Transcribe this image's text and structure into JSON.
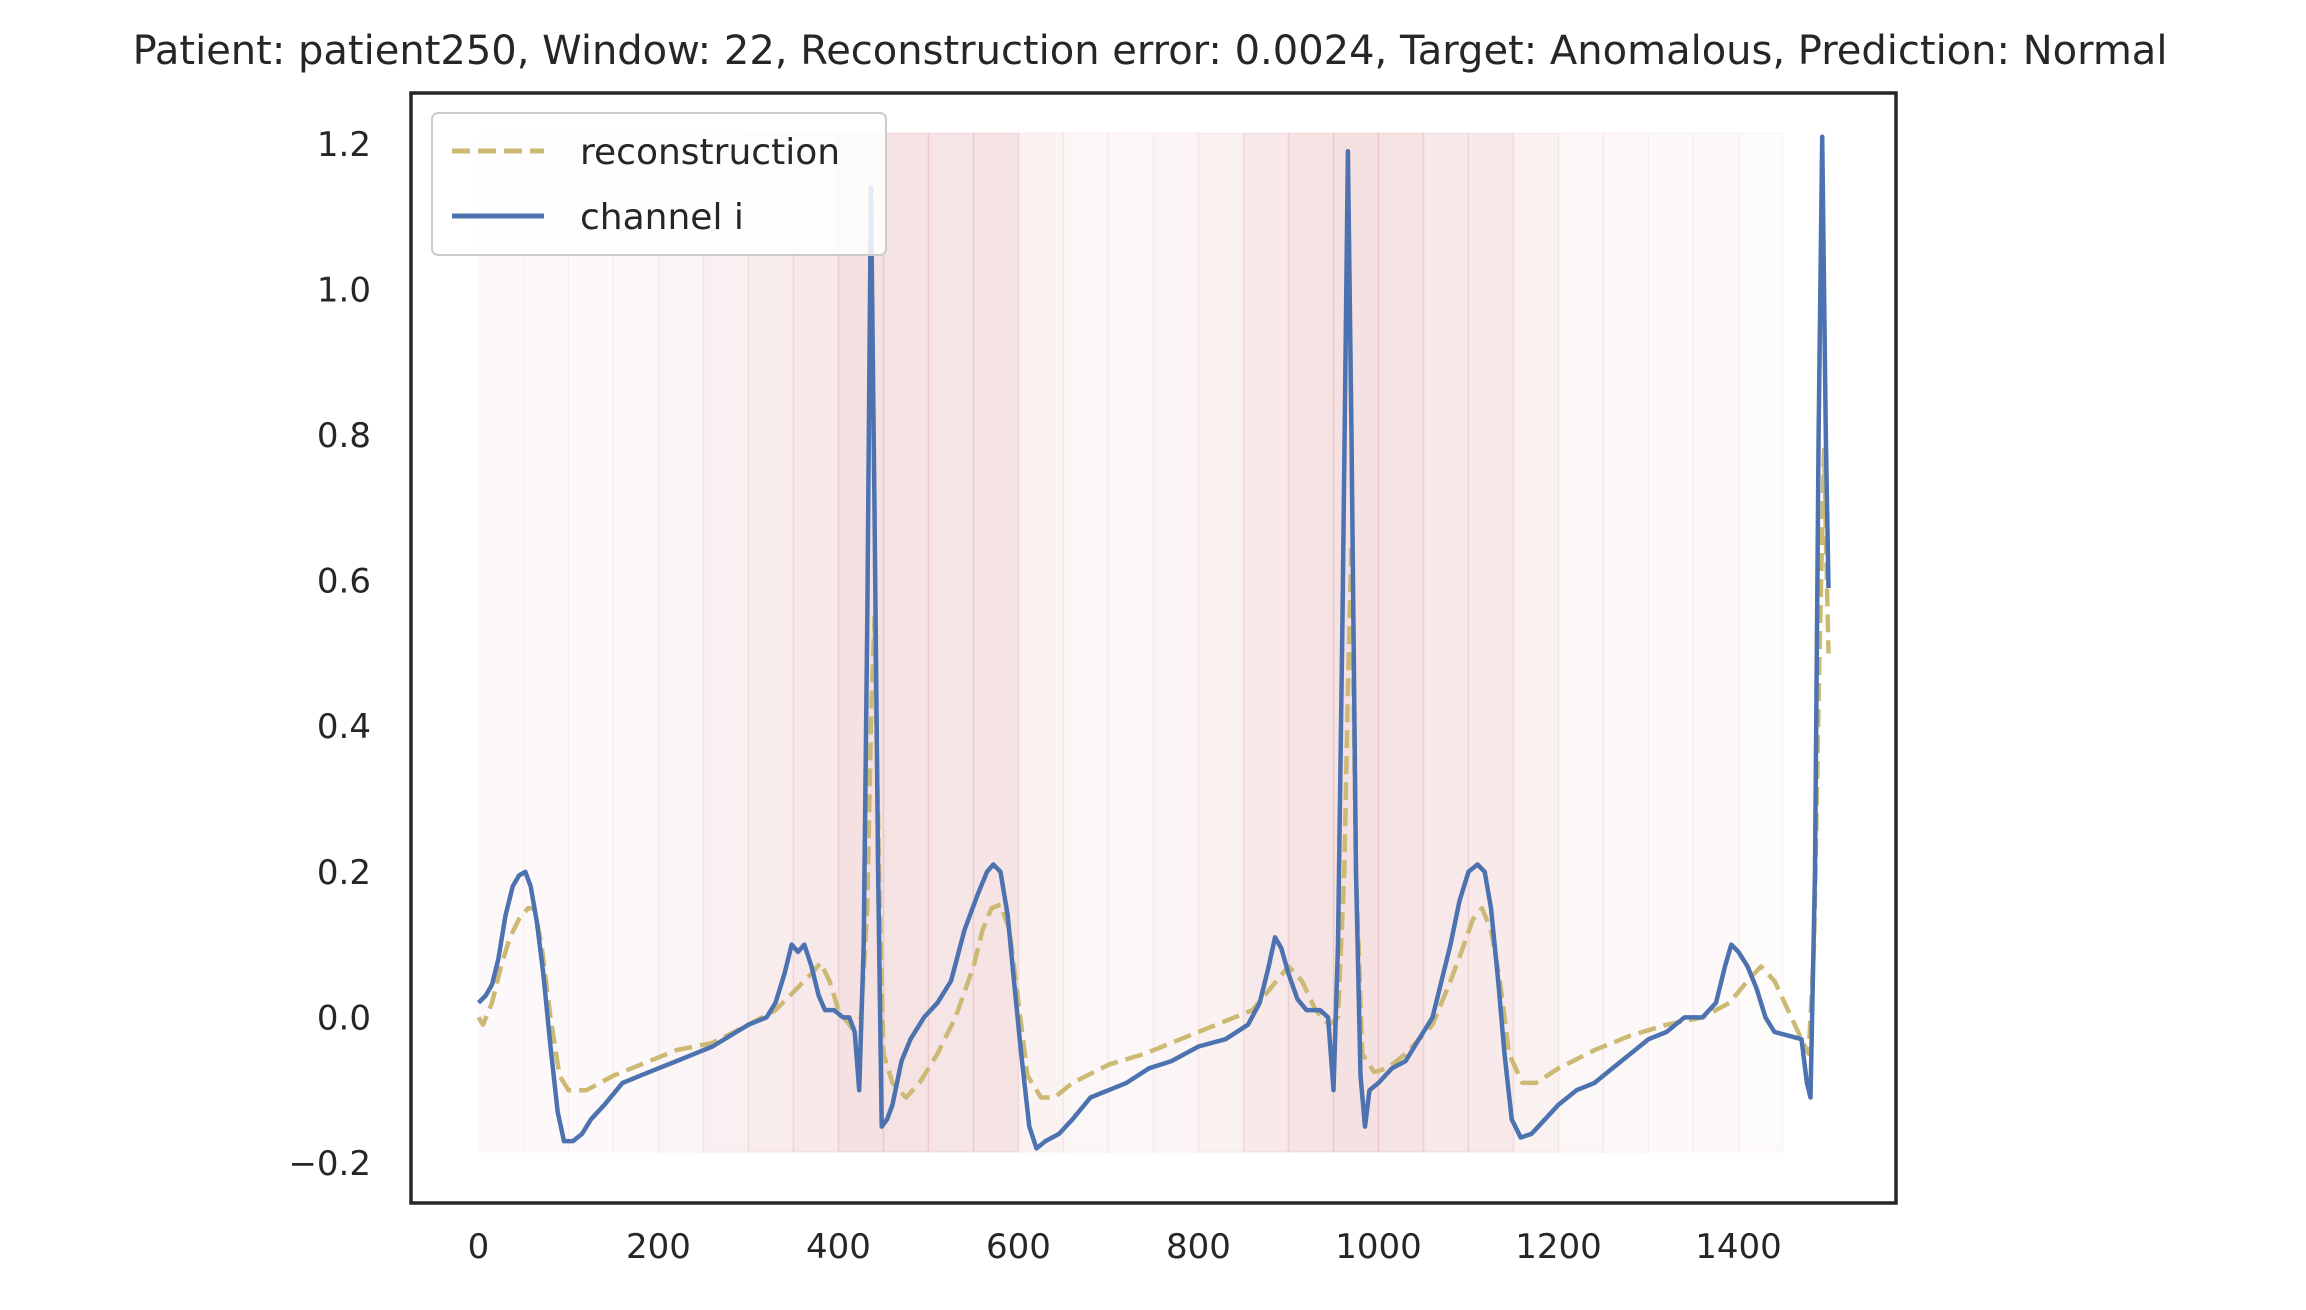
{
  "chart_data": {
    "type": "line",
    "title": "Patient: patient250, Window: 22, Reconstruction error: 0.0024, Target: Anomalous, Prediction: Normal",
    "xlabel": "",
    "ylabel": "",
    "xlim": [
      -75,
      1575
    ],
    "ylim": [
      -0.255,
      1.27
    ],
    "x_ticks": [
      0,
      200,
      400,
      600,
      800,
      1000,
      1200,
      1400
    ],
    "x_tick_labels": [
      "0",
      "200",
      "400",
      "600",
      "800",
      "1000",
      "1200",
      "1400"
    ],
    "y_ticks": [
      -0.2,
      0.0,
      0.2,
      0.4,
      0.6,
      0.8,
      1.0,
      1.2
    ],
    "y_tick_labels": [
      "−0.2",
      "0.0",
      "0.2",
      "0.4",
      "0.6",
      "0.8",
      "1.0",
      "1.2"
    ],
    "grid": false,
    "legend_position": "top-left",
    "error_bands": {
      "color": "#c44e52",
      "y_range": [
        -0.185,
        1.215
      ],
      "segments": [
        {
          "x0": 0,
          "x1": 50,
          "intensity": 0.06
        },
        {
          "x0": 50,
          "x1": 100,
          "intensity": 0.06
        },
        {
          "x0": 100,
          "x1": 150,
          "intensity": 0.06
        },
        {
          "x0": 150,
          "x1": 200,
          "intensity": 0.06
        },
        {
          "x0": 200,
          "x1": 250,
          "intensity": 0.22
        },
        {
          "x0": 250,
          "x1": 300,
          "intensity": 0.32
        },
        {
          "x0": 300,
          "x1": 350,
          "intensity": 0.42
        },
        {
          "x0": 350,
          "x1": 400,
          "intensity": 0.55
        },
        {
          "x0": 400,
          "x1": 450,
          "intensity": 0.75
        },
        {
          "x0": 450,
          "x1": 500,
          "intensity": 0.72
        },
        {
          "x0": 500,
          "x1": 550,
          "intensity": 0.62
        },
        {
          "x0": 550,
          "x1": 600,
          "intensity": 0.68
        },
        {
          "x0": 600,
          "x1": 650,
          "intensity": 0.28
        },
        {
          "x0": 650,
          "x1": 700,
          "intensity": 0.14
        },
        {
          "x0": 700,
          "x1": 750,
          "intensity": 0.1
        },
        {
          "x0": 750,
          "x1": 800,
          "intensity": 0.18
        },
        {
          "x0": 800,
          "x1": 850,
          "intensity": 0.3
        },
        {
          "x0": 850,
          "x1": 900,
          "intensity": 0.55
        },
        {
          "x0": 900,
          "x1": 950,
          "intensity": 0.66
        },
        {
          "x0": 950,
          "x1": 1000,
          "intensity": 0.75
        },
        {
          "x0": 1000,
          "x1": 1050,
          "intensity": 0.7
        },
        {
          "x0": 1050,
          "x1": 1100,
          "intensity": 0.55
        },
        {
          "x0": 1100,
          "x1": 1150,
          "intensity": 0.48
        },
        {
          "x0": 1150,
          "x1": 1200,
          "intensity": 0.3
        },
        {
          "x0": 1200,
          "x1": 1250,
          "intensity": 0.14
        },
        {
          "x0": 1250,
          "x1": 1300,
          "intensity": 0.1
        },
        {
          "x0": 1300,
          "x1": 1350,
          "intensity": 0.08
        },
        {
          "x0": 1350,
          "x1": 1400,
          "intensity": 0.06
        },
        {
          "x0": 1400,
          "x1": 1450,
          "intensity": 0.04
        }
      ]
    },
    "series": [
      {
        "name": "reconstruction",
        "color": "#ccb974",
        "style": "dashed",
        "points": [
          [
            0,
            0.0
          ],
          [
            5,
            -0.01
          ],
          [
            15,
            0.02
          ],
          [
            25,
            0.07
          ],
          [
            35,
            0.11
          ],
          [
            45,
            0.135
          ],
          [
            55,
            0.15
          ],
          [
            62,
            0.15
          ],
          [
            70,
            0.1
          ],
          [
            80,
            0.0
          ],
          [
            90,
            -0.08
          ],
          [
            100,
            -0.1
          ],
          [
            120,
            -0.1
          ],
          [
            150,
            -0.08
          ],
          [
            180,
            -0.065
          ],
          [
            220,
            -0.045
          ],
          [
            260,
            -0.035
          ],
          [
            300,
            -0.01
          ],
          [
            330,
            0.01
          ],
          [
            350,
            0.035
          ],
          [
            370,
            0.06
          ],
          [
            380,
            0.075
          ],
          [
            390,
            0.05
          ],
          [
            400,
            0.01
          ],
          [
            415,
            -0.015
          ],
          [
            425,
            0.0
          ],
          [
            432,
            0.15
          ],
          [
            436,
            0.4
          ],
          [
            440,
            0.55
          ],
          [
            445,
            0.2
          ],
          [
            450,
            -0.05
          ],
          [
            460,
            -0.09
          ],
          [
            475,
            -0.11
          ],
          [
            490,
            -0.09
          ],
          [
            510,
            -0.05
          ],
          [
            530,
            0.0
          ],
          [
            550,
            0.07
          ],
          [
            560,
            0.12
          ],
          [
            570,
            0.15
          ],
          [
            580,
            0.155
          ],
          [
            590,
            0.12
          ],
          [
            600,
            0.02
          ],
          [
            610,
            -0.08
          ],
          [
            625,
            -0.11
          ],
          [
            640,
            -0.11
          ],
          [
            660,
            -0.09
          ],
          [
            700,
            -0.065
          ],
          [
            740,
            -0.05
          ],
          [
            780,
            -0.03
          ],
          [
            820,
            -0.01
          ],
          [
            860,
            0.01
          ],
          [
            880,
            0.04
          ],
          [
            900,
            0.07
          ],
          [
            915,
            0.05
          ],
          [
            930,
            0.01
          ],
          [
            945,
            -0.01
          ],
          [
            955,
            0.0
          ],
          [
            962,
            0.2
          ],
          [
            966,
            0.45
          ],
          [
            970,
            0.65
          ],
          [
            975,
            0.2
          ],
          [
            982,
            -0.05
          ],
          [
            995,
            -0.075
          ],
          [
            1010,
            -0.07
          ],
          [
            1030,
            -0.05
          ],
          [
            1060,
            -0.01
          ],
          [
            1080,
            0.05
          ],
          [
            1095,
            0.1
          ],
          [
            1105,
            0.135
          ],
          [
            1115,
            0.15
          ],
          [
            1125,
            0.12
          ],
          [
            1135,
            0.05
          ],
          [
            1145,
            -0.05
          ],
          [
            1160,
            -0.09
          ],
          [
            1175,
            -0.09
          ],
          [
            1200,
            -0.07
          ],
          [
            1240,
            -0.045
          ],
          [
            1280,
            -0.025
          ],
          [
            1320,
            -0.01
          ],
          [
            1360,
            0.0
          ],
          [
            1390,
            0.02
          ],
          [
            1410,
            0.05
          ],
          [
            1425,
            0.07
          ],
          [
            1440,
            0.05
          ],
          [
            1455,
            0.01
          ],
          [
            1470,
            -0.03
          ],
          [
            1478,
            -0.05
          ],
          [
            1484,
            0.1
          ],
          [
            1490,
            0.5
          ],
          [
            1495,
            0.78
          ],
          [
            1500,
            0.5
          ]
        ]
      },
      {
        "name": "channel i",
        "color": "#4c72b0",
        "style": "solid",
        "points": [
          [
            0,
            0.02
          ],
          [
            8,
            0.03
          ],
          [
            15,
            0.045
          ],
          [
            22,
            0.08
          ],
          [
            30,
            0.14
          ],
          [
            38,
            0.18
          ],
          [
            45,
            0.195
          ],
          [
            52,
            0.2
          ],
          [
            58,
            0.18
          ],
          [
            65,
            0.13
          ],
          [
            72,
            0.06
          ],
          [
            80,
            -0.04
          ],
          [
            88,
            -0.13
          ],
          [
            95,
            -0.17
          ],
          [
            105,
            -0.17
          ],
          [
            115,
            -0.16
          ],
          [
            125,
            -0.14
          ],
          [
            140,
            -0.12
          ],
          [
            160,
            -0.09
          ],
          [
            180,
            -0.08
          ],
          [
            200,
            -0.07
          ],
          [
            220,
            -0.06
          ],
          [
            240,
            -0.05
          ],
          [
            260,
            -0.04
          ],
          [
            280,
            -0.025
          ],
          [
            300,
            -0.01
          ],
          [
            320,
            0.0
          ],
          [
            330,
            0.02
          ],
          [
            340,
            0.06
          ],
          [
            348,
            0.1
          ],
          [
            355,
            0.09
          ],
          [
            362,
            0.1
          ],
          [
            370,
            0.07
          ],
          [
            378,
            0.03
          ],
          [
            385,
            0.01
          ],
          [
            395,
            0.01
          ],
          [
            405,
            0.0
          ],
          [
            412,
            0.0
          ],
          [
            418,
            -0.02
          ],
          [
            423,
            -0.1
          ],
          [
            428,
            0.1
          ],
          [
            432,
            0.55
          ],
          [
            436,
            1.14
          ],
          [
            440,
            0.7
          ],
          [
            444,
            0.2
          ],
          [
            448,
            -0.15
          ],
          [
            454,
            -0.14
          ],
          [
            460,
            -0.12
          ],
          [
            470,
            -0.06
          ],
          [
            480,
            -0.03
          ],
          [
            495,
            0.0
          ],
          [
            510,
            0.02
          ],
          [
            525,
            0.05
          ],
          [
            540,
            0.12
          ],
          [
            555,
            0.17
          ],
          [
            565,
            0.2
          ],
          [
            572,
            0.21
          ],
          [
            580,
            0.2
          ],
          [
            588,
            0.14
          ],
          [
            595,
            0.05
          ],
          [
            603,
            -0.05
          ],
          [
            612,
            -0.15
          ],
          [
            620,
            -0.18
          ],
          [
            630,
            -0.17
          ],
          [
            645,
            -0.16
          ],
          [
            660,
            -0.14
          ],
          [
            680,
            -0.11
          ],
          [
            700,
            -0.1
          ],
          [
            720,
            -0.09
          ],
          [
            745,
            -0.07
          ],
          [
            770,
            -0.06
          ],
          [
            800,
            -0.04
          ],
          [
            830,
            -0.03
          ],
          [
            855,
            -0.01
          ],
          [
            868,
            0.02
          ],
          [
            878,
            0.07
          ],
          [
            885,
            0.11
          ],
          [
            892,
            0.095
          ],
          [
            900,
            0.06
          ],
          [
            910,
            0.025
          ],
          [
            920,
            0.01
          ],
          [
            935,
            0.01
          ],
          [
            944,
            0.0
          ],
          [
            950,
            -0.1
          ],
          [
            955,
            0.1
          ],
          [
            960,
            0.55
          ],
          [
            966,
            1.19
          ],
          [
            970,
            0.8
          ],
          [
            975,
            0.2
          ],
          [
            980,
            -0.08
          ],
          [
            985,
            -0.15
          ],
          [
            990,
            -0.1
          ],
          [
            1000,
            -0.09
          ],
          [
            1015,
            -0.07
          ],
          [
            1030,
            -0.06
          ],
          [
            1045,
            -0.03
          ],
          [
            1060,
            0.0
          ],
          [
            1070,
            0.05
          ],
          [
            1080,
            0.1
          ],
          [
            1090,
            0.16
          ],
          [
            1100,
            0.2
          ],
          [
            1110,
            0.21
          ],
          [
            1118,
            0.2
          ],
          [
            1125,
            0.15
          ],
          [
            1133,
            0.05
          ],
          [
            1140,
            -0.05
          ],
          [
            1148,
            -0.14
          ],
          [
            1158,
            -0.165
          ],
          [
            1170,
            -0.16
          ],
          [
            1185,
            -0.14
          ],
          [
            1200,
            -0.12
          ],
          [
            1220,
            -0.1
          ],
          [
            1240,
            -0.09
          ],
          [
            1260,
            -0.07
          ],
          [
            1280,
            -0.05
          ],
          [
            1300,
            -0.03
          ],
          [
            1320,
            -0.02
          ],
          [
            1340,
            0.0
          ],
          [
            1360,
            0.0
          ],
          [
            1375,
            0.02
          ],
          [
            1385,
            0.07
          ],
          [
            1392,
            0.1
          ],
          [
            1400,
            0.09
          ],
          [
            1410,
            0.07
          ],
          [
            1420,
            0.04
          ],
          [
            1430,
            0.0
          ],
          [
            1440,
            -0.02
          ],
          [
            1455,
            -0.025
          ],
          [
            1470,
            -0.03
          ],
          [
            1476,
            -0.09
          ],
          [
            1480,
            -0.11
          ],
          [
            1485,
            0.2
          ],
          [
            1489,
            0.8
          ],
          [
            1493,
            1.21
          ],
          [
            1497,
            0.8
          ],
          [
            1500,
            0.59
          ]
        ]
      }
    ]
  }
}
